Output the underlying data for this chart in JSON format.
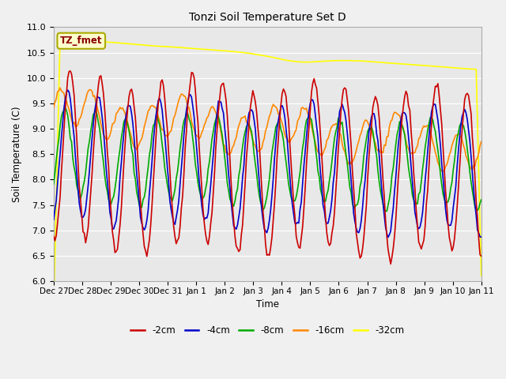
{
  "title": "Tonzi Soil Temperature Set D",
  "xlabel": "Time",
  "ylabel": "Soil Temperature (C)",
  "ylim": [
    6.0,
    11.0
  ],
  "yticks": [
    6.0,
    6.5,
    7.0,
    7.5,
    8.0,
    8.5,
    9.0,
    9.5,
    10.0,
    10.5,
    11.0
  ],
  "x_labels": [
    "Dec 27",
    "Dec 28",
    "Dec 29",
    "Dec 30",
    "Dec 31",
    "Jan 1",
    "Jan 2",
    "Jan 3",
    "Jan 4",
    "Jan 5",
    "Jan 6",
    "Jan 7",
    "Jan 8",
    "Jan 9",
    "Jan 10",
    "Jan 11"
  ],
  "legend_labels": [
    "-2cm",
    "-4cm",
    "-8cm",
    "-16cm",
    "-32cm"
  ],
  "legend_colors": [
    "#cc0000",
    "#0000cc",
    "#00aa00",
    "#ff8800",
    "#ffff00"
  ],
  "annotation_text": "TZ_fmet",
  "annotation_color": "#8b0000",
  "annotation_bg": "#ffffcc",
  "days": 14,
  "n_points": 336
}
